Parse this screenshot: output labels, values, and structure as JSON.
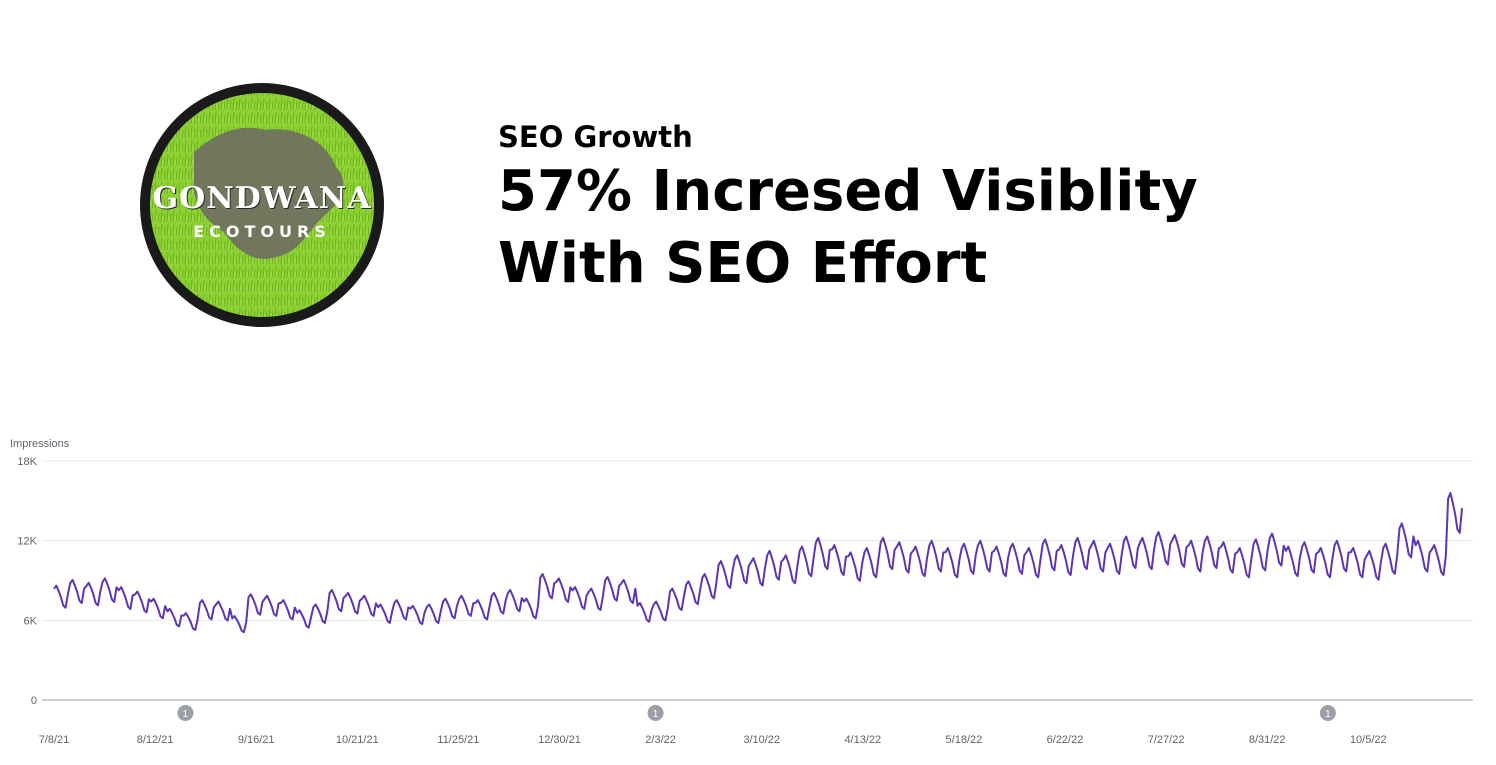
{
  "logo": {
    "name": "GONDWANA",
    "sub": "ECOTOURS",
    "colors": {
      "ring": "#1a1a1a",
      "grass": "#8cd233",
      "land": "#6e6e62"
    }
  },
  "headline": {
    "kicker": "SEO Growth",
    "title_line1": "57% Incresed Visiblity",
    "title_line2": "With SEO Effort"
  },
  "chart_data": {
    "type": "line",
    "title": "",
    "ylabel": "Impressions",
    "xlabel": "",
    "ylim": [
      0,
      18000
    ],
    "yticks": [
      {
        "value": 0,
        "label": "0"
      },
      {
        "value": 6000,
        "label": "6K"
      },
      {
        "value": 12000,
        "label": "12K"
      },
      {
        "value": 18000,
        "label": "18K"
      }
    ],
    "xticks": [
      "7/8/21",
      "8/12/21",
      "9/16/21",
      "10/21/21",
      "11/25/21",
      "12/30/21",
      "2/3/22",
      "3/10/22",
      "4/13/22",
      "5/18/22",
      "6/22/22",
      "7/27/22",
      "8/31/22",
      "10/5/22"
    ],
    "annotations": [
      {
        "label": "1",
        "date_index": 1.3
      },
      {
        "label": "1",
        "date_index": 5.95
      },
      {
        "label": "1",
        "date_index": 12.6
      }
    ],
    "series": [
      {
        "color": "#5e35b1",
        "weekly_values": [
          7900,
          8300,
          8100,
          8400,
          7800,
          7500,
          7000,
          6300,
          6000,
          6900,
          6800,
          5800,
          7300,
          7200,
          6900,
          6200,
          6600,
          7600,
          7400,
          7200,
          6600,
          6900,
          6500,
          6600,
          7000,
          7200,
          6900,
          7400,
          7600,
          7000,
          8700,
          8400,
          7800,
          7700,
          8500,
          8300,
          6700,
          6800,
          7700,
          8200,
          8700,
          9600,
          10000,
          9800,
          10300,
          10000,
          10600,
          11200,
          10700,
          10200,
          10500,
          11200,
          10900,
          10600,
          11000,
          10500,
          10800,
          11000,
          10600,
          10800,
          10500,
          11100,
          10700,
          11200,
          11000,
          10800,
          11300,
          11200,
          11600,
          11400,
          11000,
          11300,
          10900,
          10500,
          11100,
          11500,
          10600,
          10900,
          10500,
          11000,
          10500,
          10300,
          10800,
          12200,
          11000,
          10700,
          14300
        ]
      }
    ]
  }
}
